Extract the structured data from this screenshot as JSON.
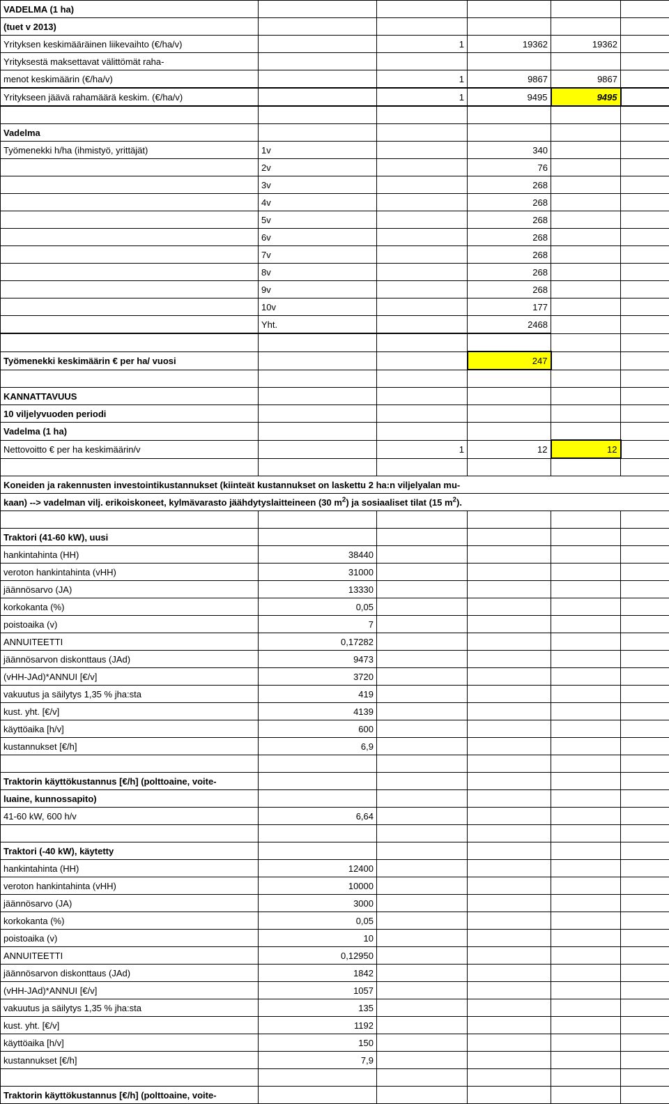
{
  "header": {
    "title1": "VADELMA (1 ha)",
    "title2": "(tuet v 2013)",
    "row_turnover_label": "Yrityksen keskimääräinen liikevaihto (€/ha/v)",
    "row_turnover_one": "1",
    "row_turnover_val1": "19362",
    "row_turnover_val2": "19362",
    "row_expenses_label1": "Yrityksestä maksettavat välittömät raha-",
    "row_expenses_label2": "menot keskimäärin (€/ha/v)",
    "row_expenses_one": "1",
    "row_expenses_val1": "9867",
    "row_expenses_val2": "9867",
    "row_remaining_label": "Yritykseen jäävä rahamäärä keskim. (€/ha/v)",
    "row_remaining_one": "1",
    "row_remaining_val1": "9495",
    "row_remaining_val2": "9495"
  },
  "workblock": {
    "heading": "Vadelma",
    "subheading": "Työmenekki h/ha (ihmistyö, yrittäjät)",
    "rows": [
      {
        "label": "1v",
        "val": "340"
      },
      {
        "label": "2v",
        "val": "76"
      },
      {
        "label": "3v",
        "val": "268"
      },
      {
        "label": "4v",
        "val": "268"
      },
      {
        "label": "5v",
        "val": "268"
      },
      {
        "label": "6v",
        "val": "268"
      },
      {
        "label": "7v",
        "val": "268"
      },
      {
        "label": "8v",
        "val": "268"
      },
      {
        "label": "9v",
        "val": "268"
      },
      {
        "label": "10v",
        "val": "177"
      }
    ],
    "total_label": "Yht.",
    "total_val": "2468",
    "avg_label": "Työmenekki keskimäärin € per ha/ vuosi",
    "avg_val": "247"
  },
  "profitability": {
    "heading": "KANNATTAVUUS",
    "period": "10 viljelyvuoden periodi",
    "subject": "Vadelma (1 ha)",
    "netprofit_label": "Nettovoitto € per ha keskimäärin/v",
    "one": "1",
    "val1": "12",
    "val2": "12"
  },
  "inv_note": {
    "line1a": "Koneiden ja rakennusten investointikustannukset (kiinteät kustannukset on laskettu 2 ha:n viljelyalan mu-",
    "line2_pre": "kaan) --> vadelman vilj. erikoiskoneet, kylmävarasto jäähdytyslaitteineen (30 m",
    "line2_sup1": "2",
    "line2_mid": ") ja sosiaaliset tilat (15 m",
    "line2_sup2": "2",
    "line2_end": ")."
  },
  "tractor_new": {
    "title": "Traktori (41-60 kW), uusi",
    "rows": [
      {
        "label": "hankintahinta (HH)",
        "val": "38440"
      },
      {
        "label": "veroton hankintahinta (vHH)",
        "val": "31000"
      },
      {
        "label": "jäännösarvo (JA)",
        "val": "13330"
      },
      {
        "label": "korkokanta (%)",
        "val": "0,05"
      },
      {
        "label": "poistoaika (v)",
        "val": "7"
      },
      {
        "label": "ANNUITEETTI",
        "val": "0,17282"
      },
      {
        "label": "jäännösarvon diskonttaus (JAd)",
        "val": "9473"
      },
      {
        "label": "(vHH-JAd)*ANNUI   [€/v]",
        "val": "3720"
      },
      {
        "label": "vakuutus ja säilytys 1,35 % jha:sta",
        "val": "419"
      },
      {
        "label": "kust. yht. [€/v]",
        "val": "4139"
      },
      {
        "label": "käyttöaika [h/v]",
        "val": "600"
      },
      {
        "label": "kustannukset [€/h]",
        "val": "6,9"
      }
    ]
  },
  "tractor_op_new": {
    "line1": "Traktorin käyttökustannus [€/h] (polttoaine, voite-",
    "line2": "luaine, kunnossapito)",
    "row_label": "41-60 kW, 600 h/v",
    "row_val": "6,64"
  },
  "tractor_used": {
    "title": "Traktori (-40 kW), käytetty",
    "rows": [
      {
        "label": "hankintahinta (HH)",
        "val": "12400"
      },
      {
        "label": "veroton hankintahinta (vHH)",
        "val": "10000"
      },
      {
        "label": "jäännösarvo (JA)",
        "val": "3000"
      },
      {
        "label": "korkokanta (%)",
        "val": "0,05"
      },
      {
        "label": "poistoaika (v)",
        "val": "10"
      },
      {
        "label": "ANNUITEETTI",
        "val": "0,12950"
      },
      {
        "label": "jäännösarvon diskonttaus (JAd)",
        "val": "1842"
      },
      {
        "label": "(vHH-JAd)*ANNUI   [€/v]",
        "val": "1057"
      },
      {
        "label": "vakuutus ja säilytys 1,35 % jha:sta",
        "val": "135"
      },
      {
        "label": "kust. yht. [€/v]",
        "val": "1192"
      },
      {
        "label": "käyttöaika [h/v]",
        "val": "150"
      },
      {
        "label": "kustannukset [€/h]",
        "val": "7,9"
      }
    ]
  },
  "tractor_op_used": {
    "line1": "Traktorin käyttökustannus [€/h] (polttoaine, voite-"
  }
}
